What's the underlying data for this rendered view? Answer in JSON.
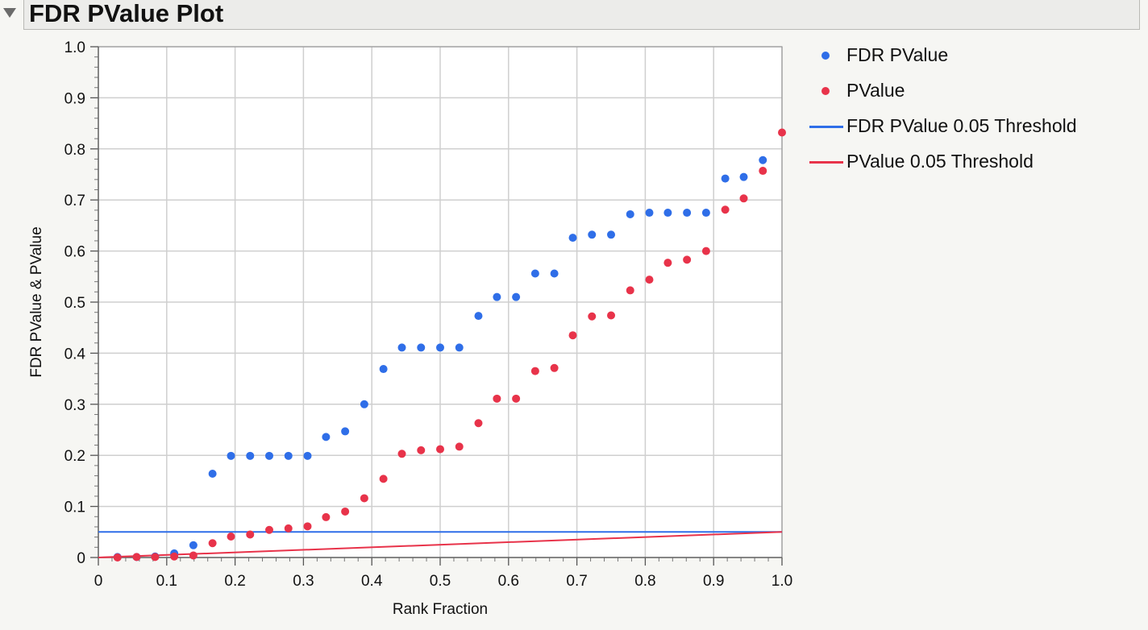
{
  "header": {
    "title": "FDR PValue Plot"
  },
  "colors": {
    "fdr": "#2f6ee8",
    "pvalue": "#e8334a",
    "grid": "#cfcfcf",
    "plot_bg": "#ffffff"
  },
  "chart_data": {
    "type": "scatter",
    "title": "FDR PValue Plot",
    "xlabel": "Rank Fraction",
    "ylabel": "FDR PValue & PValue",
    "xlim": [
      0,
      1.0
    ],
    "ylim": [
      0,
      1.0
    ],
    "x_ticks": [
      "0",
      "0.1",
      "0.2",
      "0.3",
      "0.4",
      "0.5",
      "0.6",
      "0.7",
      "0.8",
      "0.9",
      "1.0"
    ],
    "y_ticks": [
      "0",
      "0.1",
      "0.2",
      "0.3",
      "0.4",
      "0.5",
      "0.6",
      "0.7",
      "0.8",
      "0.9",
      "1.0"
    ],
    "grid": true,
    "legend_position": "right",
    "series": [
      {
        "name": "FDR PValue",
        "kind": "points",
        "color": "#2f6ee8",
        "points": [
          [
            0.028,
            0.001
          ],
          [
            0.056,
            0.001
          ],
          [
            0.083,
            0.002
          ],
          [
            0.111,
            0.008
          ],
          [
            0.139,
            0.024
          ],
          [
            0.167,
            0.164
          ],
          [
            0.194,
            0.199
          ],
          [
            0.222,
            0.199
          ],
          [
            0.25,
            0.199
          ],
          [
            0.278,
            0.199
          ],
          [
            0.306,
            0.199
          ],
          [
            0.333,
            0.236
          ],
          [
            0.361,
            0.247
          ],
          [
            0.389,
            0.3
          ],
          [
            0.417,
            0.369
          ],
          [
            0.444,
            0.411
          ],
          [
            0.472,
            0.411
          ],
          [
            0.5,
            0.411
          ],
          [
            0.528,
            0.411
          ],
          [
            0.556,
            0.473
          ],
          [
            0.583,
            0.51
          ],
          [
            0.611,
            0.51
          ],
          [
            0.639,
            0.556
          ],
          [
            0.667,
            0.556
          ],
          [
            0.694,
            0.626
          ],
          [
            0.722,
            0.632
          ],
          [
            0.75,
            0.632
          ],
          [
            0.778,
            0.672
          ],
          [
            0.806,
            0.675
          ],
          [
            0.833,
            0.675
          ],
          [
            0.861,
            0.675
          ],
          [
            0.889,
            0.675
          ],
          [
            0.917,
            0.742
          ],
          [
            0.944,
            0.745
          ],
          [
            0.972,
            0.778
          ]
        ]
      },
      {
        "name": "PValue",
        "kind": "points",
        "color": "#e8334a",
        "points": [
          [
            0.028,
            0.0
          ],
          [
            0.056,
            0.001
          ],
          [
            0.083,
            0.001
          ],
          [
            0.111,
            0.002
          ],
          [
            0.139,
            0.004
          ],
          [
            0.167,
            0.028
          ],
          [
            0.194,
            0.041
          ],
          [
            0.222,
            0.045
          ],
          [
            0.25,
            0.054
          ],
          [
            0.278,
            0.057
          ],
          [
            0.306,
            0.061
          ],
          [
            0.333,
            0.079
          ],
          [
            0.361,
            0.09
          ],
          [
            0.389,
            0.116
          ],
          [
            0.417,
            0.154
          ],
          [
            0.444,
            0.203
          ],
          [
            0.472,
            0.21
          ],
          [
            0.5,
            0.212
          ],
          [
            0.528,
            0.217
          ],
          [
            0.556,
            0.263
          ],
          [
            0.583,
            0.311
          ],
          [
            0.611,
            0.311
          ],
          [
            0.639,
            0.365
          ],
          [
            0.667,
            0.371
          ],
          [
            0.694,
            0.435
          ],
          [
            0.722,
            0.472
          ],
          [
            0.75,
            0.474
          ],
          [
            0.778,
            0.523
          ],
          [
            0.806,
            0.544
          ],
          [
            0.833,
            0.577
          ],
          [
            0.861,
            0.583
          ],
          [
            0.889,
            0.6
          ],
          [
            0.917,
            0.681
          ],
          [
            0.944,
            0.703
          ],
          [
            0.972,
            0.757
          ],
          [
            1.0,
            0.832
          ]
        ]
      },
      {
        "name": "FDR PValue 0.05 Threshold",
        "kind": "line",
        "color": "#2f6ee8",
        "points": [
          [
            0,
            0.05
          ],
          [
            1.0,
            0.05
          ]
        ]
      },
      {
        "name": "PValue 0.05 Threshold",
        "kind": "line",
        "color": "#e8334a",
        "points": [
          [
            0,
            0.0
          ],
          [
            1.0,
            0.05
          ]
        ]
      }
    ]
  }
}
